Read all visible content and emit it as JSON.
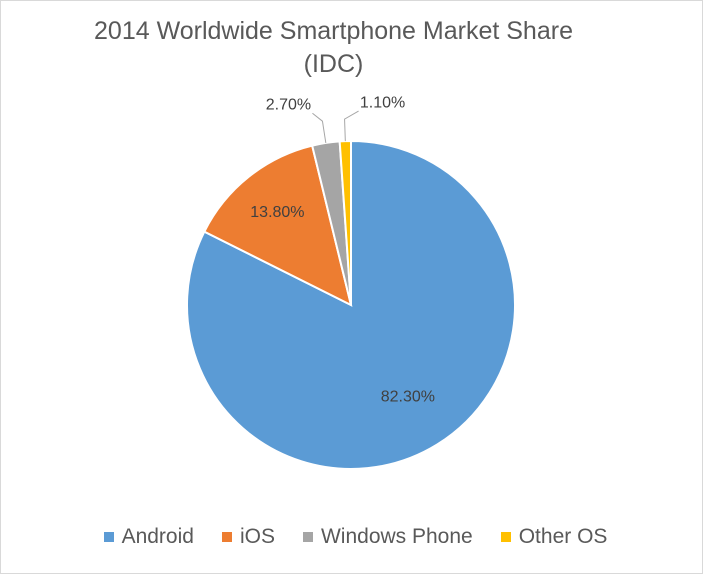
{
  "chart_data": {
    "type": "pie",
    "title": [
      "2014 Worldwide Smartphone Market Share",
      "(IDC)"
    ],
    "categories": [
      "Android",
      "iOS",
      "Windows Phone",
      "Other OS"
    ],
    "values": [
      82.3,
      13.8,
      2.7,
      1.1
    ],
    "data_labels": [
      "82.30%",
      "13.80%",
      "2.70%",
      "1.10%"
    ],
    "colors": [
      "#5B9BD5",
      "#ED7D31",
      "#A5A5A5",
      "#FFC000"
    ],
    "legend": "bottom",
    "start_angle": "12 o'clock, clockwise"
  }
}
